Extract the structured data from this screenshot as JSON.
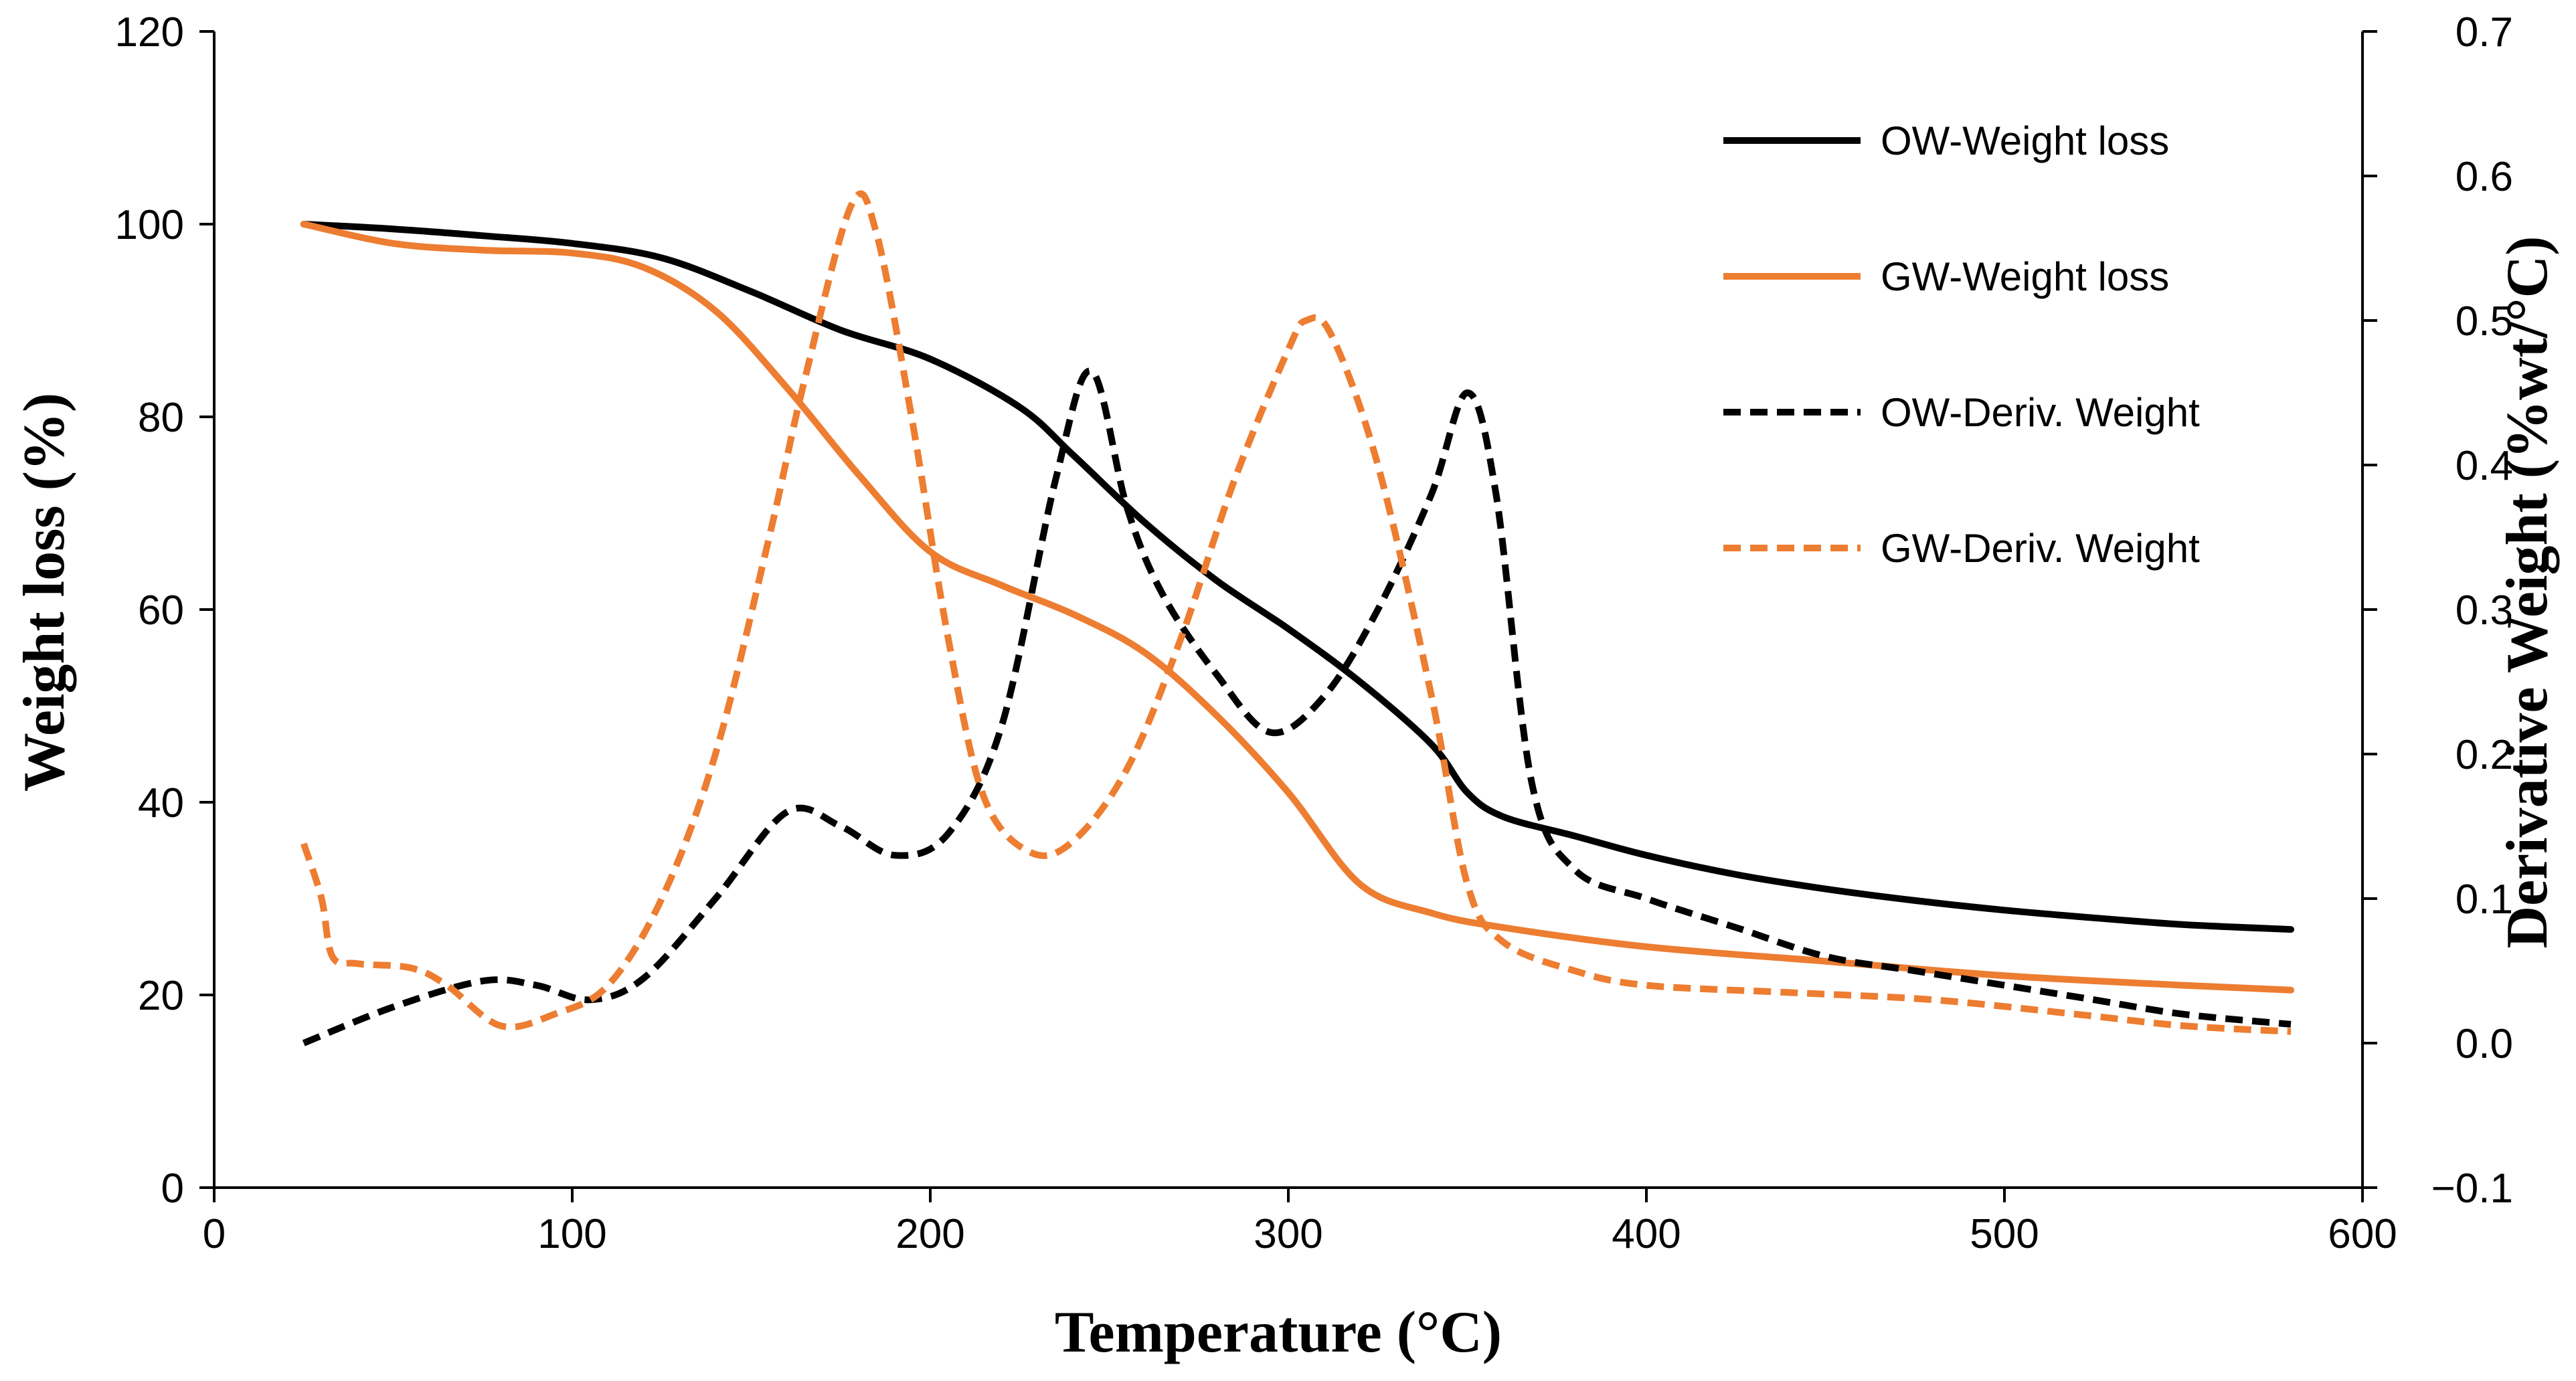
{
  "chart_data": {
    "type": "line",
    "title": "",
    "xlabel": "Temperature (°C)",
    "ylabel": "Weight loss (%)",
    "y2label": "Derivative Weight (%wt/°C)",
    "xlim": [
      0,
      600
    ],
    "ylim": [
      0,
      120
    ],
    "y2lim": [
      -0.1,
      0.7
    ],
    "x_ticks": [
      0,
      100,
      200,
      300,
      400,
      500,
      600
    ],
    "y_ticks": [
      0,
      20,
      40,
      60,
      80,
      100,
      120
    ],
    "y2_tick_values": [
      -0.1,
      0.0,
      0.1,
      0.2,
      0.3,
      0.4,
      0.5,
      0.6,
      0.7
    ],
    "y2_tick_labels": [
      "−0.1",
      "0.0",
      "0.1",
      "0.2",
      "0.3",
      "0.4",
      "0.5",
      "0.6",
      "0.7"
    ],
    "grid": false,
    "legend_position": "top-right",
    "series": [
      {
        "name": "OW-Weight loss",
        "axis": "left",
        "color": "#000000",
        "dash": "solid",
        "points": [
          [
            25,
            100
          ],
          [
            50,
            99.5
          ],
          [
            75,
            98.8
          ],
          [
            100,
            98
          ],
          [
            125,
            96.5
          ],
          [
            150,
            93
          ],
          [
            175,
            89
          ],
          [
            200,
            86
          ],
          [
            225,
            81
          ],
          [
            240,
            76
          ],
          [
            260,
            69
          ],
          [
            280,
            63
          ],
          [
            300,
            58
          ],
          [
            320,
            52.5
          ],
          [
            340,
            46
          ],
          [
            350,
            41
          ],
          [
            360,
            38.5
          ],
          [
            380,
            36.5
          ],
          [
            400,
            34.5
          ],
          [
            425,
            32.5
          ],
          [
            450,
            31
          ],
          [
            475,
            29.8
          ],
          [
            500,
            28.8
          ],
          [
            525,
            28
          ],
          [
            550,
            27.3
          ],
          [
            580,
            26.8
          ]
        ]
      },
      {
        "name": "GW-Weight loss",
        "axis": "left",
        "color": "#ED7D31",
        "dash": "solid",
        "points": [
          [
            25,
            100
          ],
          [
            50,
            98
          ],
          [
            75,
            97.3
          ],
          [
            100,
            97
          ],
          [
            120,
            95.5
          ],
          [
            140,
            91
          ],
          [
            160,
            83
          ],
          [
            180,
            74
          ],
          [
            200,
            66
          ],
          [
            220,
            62.5
          ],
          [
            240,
            59.5
          ],
          [
            260,
            55.5
          ],
          [
            280,
            49
          ],
          [
            300,
            41
          ],
          [
            320,
            31.5
          ],
          [
            340,
            28.5
          ],
          [
            360,
            27
          ],
          [
            400,
            25
          ],
          [
            450,
            23.5
          ],
          [
            500,
            22
          ],
          [
            550,
            21
          ],
          [
            580,
            20.5
          ]
        ]
      },
      {
        "name": "OW-Deriv. Weight",
        "axis": "right",
        "color": "#000000",
        "dash": "dashed",
        "points": [
          [
            25,
            0.0
          ],
          [
            50,
            0.025
          ],
          [
            75,
            0.043
          ],
          [
            90,
            0.04
          ],
          [
            105,
            0.03
          ],
          [
            120,
            0.045
          ],
          [
            140,
            0.1
          ],
          [
            160,
            0.16
          ],
          [
            175,
            0.15
          ],
          [
            190,
            0.13
          ],
          [
            205,
            0.145
          ],
          [
            220,
            0.22
          ],
          [
            235,
            0.39
          ],
          [
            245,
            0.465
          ],
          [
            255,
            0.37
          ],
          [
            265,
            0.31
          ],
          [
            280,
            0.255
          ],
          [
            295,
            0.215
          ],
          [
            310,
            0.24
          ],
          [
            325,
            0.3
          ],
          [
            340,
            0.38
          ],
          [
            350,
            0.45
          ],
          [
            358,
            0.38
          ],
          [
            368,
            0.18
          ],
          [
            380,
            0.12
          ],
          [
            400,
            0.1
          ],
          [
            425,
            0.08
          ],
          [
            450,
            0.06
          ],
          [
            475,
            0.05
          ],
          [
            500,
            0.04
          ],
          [
            525,
            0.03
          ],
          [
            550,
            0.02
          ],
          [
            580,
            0.013
          ]
        ]
      },
      {
        "name": "GW-Deriv. Weight",
        "axis": "right",
        "color": "#ED7D31",
        "dash": "dashed",
        "points": [
          [
            25,
            0.138
          ],
          [
            30,
            0.1
          ],
          [
            33,
            0.06
          ],
          [
            40,
            0.055
          ],
          [
            55,
            0.052
          ],
          [
            65,
            0.04
          ],
          [
            80,
            0.012
          ],
          [
            95,
            0.02
          ],
          [
            110,
            0.04
          ],
          [
            125,
            0.1
          ],
          [
            140,
            0.2
          ],
          [
            155,
            0.35
          ],
          [
            165,
            0.46
          ],
          [
            178,
            0.58
          ],
          [
            185,
            0.56
          ],
          [
            195,
            0.43
          ],
          [
            205,
            0.28
          ],
          [
            215,
            0.17
          ],
          [
            228,
            0.132
          ],
          [
            240,
            0.14
          ],
          [
            255,
            0.19
          ],
          [
            270,
            0.28
          ],
          [
            285,
            0.39
          ],
          [
            300,
            0.48
          ],
          [
            305,
            0.5
          ],
          [
            312,
            0.49
          ],
          [
            325,
            0.4
          ],
          [
            340,
            0.24
          ],
          [
            350,
            0.11
          ],
          [
            360,
            0.07
          ],
          [
            380,
            0.05
          ],
          [
            400,
            0.04
          ],
          [
            440,
            0.035
          ],
          [
            480,
            0.03
          ],
          [
            520,
            0.02
          ],
          [
            550,
            0.012
          ],
          [
            580,
            0.008
          ]
        ]
      }
    ]
  }
}
